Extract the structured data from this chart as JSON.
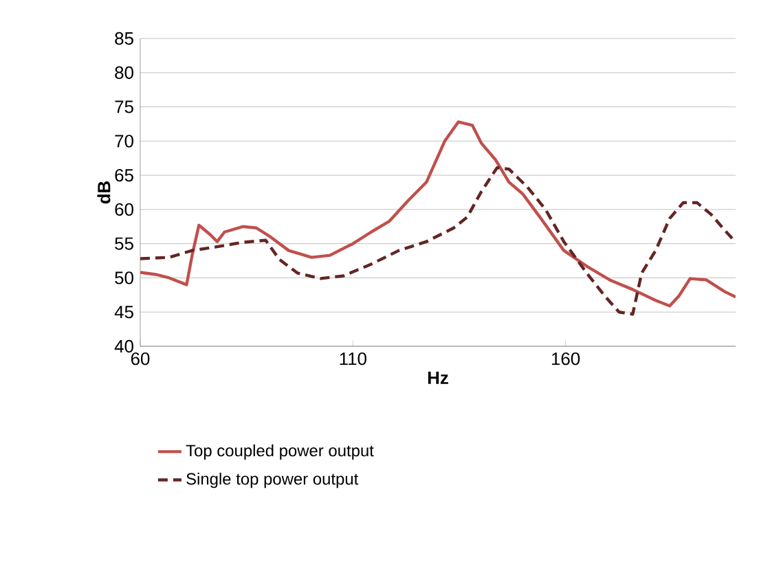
{
  "chart_data": {
    "type": "line",
    "xlabel": "Hz",
    "ylabel": "dB",
    "xlim": [
      60,
      200
    ],
    "xticks": [
      60,
      110,
      160
    ],
    "ylim": [
      40,
      85
    ],
    "yticks": [
      40,
      45,
      50,
      55,
      60,
      65,
      70,
      75,
      80,
      85
    ],
    "grid": "y",
    "legend": "bottom",
    "marker": "none",
    "series": [
      {
        "name": "Top coupled power output",
        "color": "#c0504d",
        "line_style": "solid",
        "x": [
          60,
          63.6,
          66.8,
          70.9,
          72.2,
          73.8,
          76.5,
          78.1,
          79.8,
          84.1,
          87.3,
          90.6,
          94.9,
          100.3,
          104.6,
          110,
          114.3,
          118.6,
          123,
          127.3,
          131.6,
          134.8,
          138.1,
          140.2,
          143.5,
          146.7,
          149.9,
          154.2,
          159.6,
          165,
          170.4,
          175.8,
          181.2,
          184.5,
          186.6,
          189.3,
          193.1,
          197.4,
          200
        ],
        "values": [
          50.8,
          50.5,
          50,
          49,
          53.3,
          57.7,
          56.3,
          55.3,
          56.7,
          57.5,
          57.3,
          56,
          54,
          53,
          53.3,
          55,
          56.7,
          58.3,
          61.3,
          64,
          70,
          72.8,
          72.3,
          69.7,
          67.3,
          64,
          62.3,
          58.7,
          54,
          51.7,
          49.7,
          48.3,
          46.7,
          45.9,
          47.3,
          49.9,
          49.7,
          48,
          47.2
        ]
      },
      {
        "name": "Single top power output",
        "color": "#632523",
        "line_style": "dashed",
        "x": [
          60,
          66.8,
          72.2,
          77.6,
          84.1,
          89.5,
          92.7,
          97,
          102.4,
          107.8,
          114.3,
          120.8,
          127.3,
          130.5,
          133.7,
          136.9,
          140.2,
          143.9,
          146.7,
          151,
          155.3,
          159.6,
          165,
          169.3,
          172.6,
          175.8,
          177.9,
          181.2,
          184.5,
          187.7,
          190.9,
          194.2,
          197.4,
          200
        ],
        "values": [
          52.8,
          53,
          54,
          54.5,
          55.2,
          55.5,
          52.7,
          50.7,
          49.9,
          50.3,
          52,
          54,
          55.3,
          56.3,
          57.3,
          58.9,
          62.6,
          66.1,
          65.9,
          63.3,
          60,
          55.3,
          50.7,
          47.3,
          45,
          44.7,
          50.7,
          54,
          58.7,
          61,
          61,
          59.3,
          57,
          55.2
        ]
      }
    ]
  }
}
